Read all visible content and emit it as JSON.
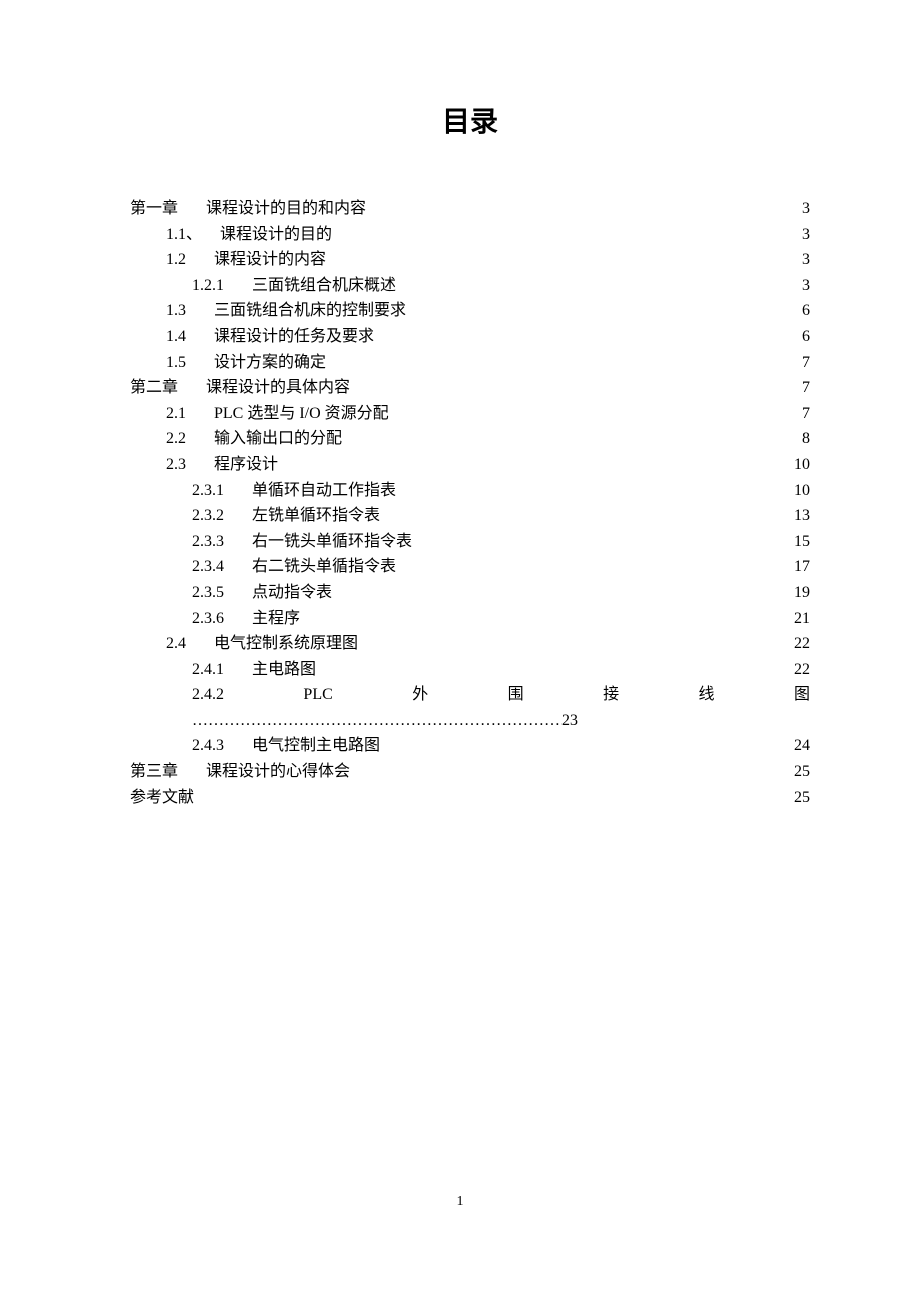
{
  "title": "目录",
  "page_number": "1",
  "entries": [
    {
      "level": 1,
      "num": "第一章",
      "gap": "wide",
      "text": "课程设计的目的和内容",
      "page": "3"
    },
    {
      "level": 2,
      "num": "1.1、",
      "gap": "norm",
      "text": "课程设计的目的",
      "page": "3"
    },
    {
      "level": 2,
      "num": "1.2",
      "gap": "wide",
      "text": "课程设计的内容",
      "page": "3"
    },
    {
      "level": 3,
      "num": "1.2.1",
      "gap": "wide",
      "text": "三面铣组合机床概述",
      "page": "3"
    },
    {
      "level": 2,
      "num": "1.3",
      "gap": "wide",
      "text": "三面铣组合机床的控制要求",
      "page": "6"
    },
    {
      "level": 2,
      "num": "1.4",
      "gap": "wide",
      "text": "课程设计的任务及要求",
      "page": "6"
    },
    {
      "level": 2,
      "num": "1.5",
      "gap": "wide",
      "text": "设计方案的确定",
      "page": "7"
    },
    {
      "level": 1,
      "num": "第二章",
      "gap": "wide",
      "text": "课程设计的具体内容",
      "page": "7"
    },
    {
      "level": 2,
      "num": "2.1",
      "gap": "wide",
      "text": "PLC 选型与 I/O 资源分配",
      "page": "7"
    },
    {
      "level": 2,
      "num": "2.2",
      "gap": "wide",
      "text": "输入输出口的分配",
      "page": "8"
    },
    {
      "level": 2,
      "num": "2.3",
      "gap": "wide",
      "text": "程序设计",
      "page": "10"
    },
    {
      "level": 3,
      "num": "2.3.1",
      "gap": "wide",
      "text": "单循环自动工作指表",
      "page": "10"
    },
    {
      "level": 3,
      "num": "2.3.2",
      "gap": "wide",
      "text": "左铣单循环指令表",
      "page": "13"
    },
    {
      "level": 3,
      "num": "2.3.3",
      "gap": "wide",
      "text": "右一铣头单循环指令表",
      "page": "15"
    },
    {
      "level": 3,
      "num": "2.3.4",
      "gap": "wide",
      "text": "右二铣头单循指令表",
      "page": "17"
    },
    {
      "level": 3,
      "num": "2.3.5",
      "gap": "wide",
      "text": "点动指令表",
      "page": "19"
    },
    {
      "level": 3,
      "num": "2.3.6",
      "gap": "wide",
      "text": "主程序",
      "page": "21"
    },
    {
      "level": 2,
      "num": "2.4",
      "gap": "wide",
      "text": "电气控制系统原理图",
      "page": "22"
    },
    {
      "level": 3,
      "num": "2.4.1",
      "gap": "wide",
      "text": "主电路图",
      "page": "22"
    },
    {
      "level": 3,
      "num": "2.4.2",
      "gap": "justify",
      "chars": [
        "PLC",
        "外",
        "围",
        "接",
        "线",
        "图"
      ],
      "continuation_page": "23"
    },
    {
      "level": 3,
      "num": "2.4.3",
      "gap": "wide",
      "text": "电气控制主电路图",
      "page": "24"
    },
    {
      "level": 1,
      "num": "第三章",
      "gap": "wide",
      "text": "课程设计的心得体会",
      "page": "25"
    },
    {
      "level": 1,
      "num": "参考文献",
      "gap": "none",
      "text": "",
      "page": "25"
    }
  ]
}
